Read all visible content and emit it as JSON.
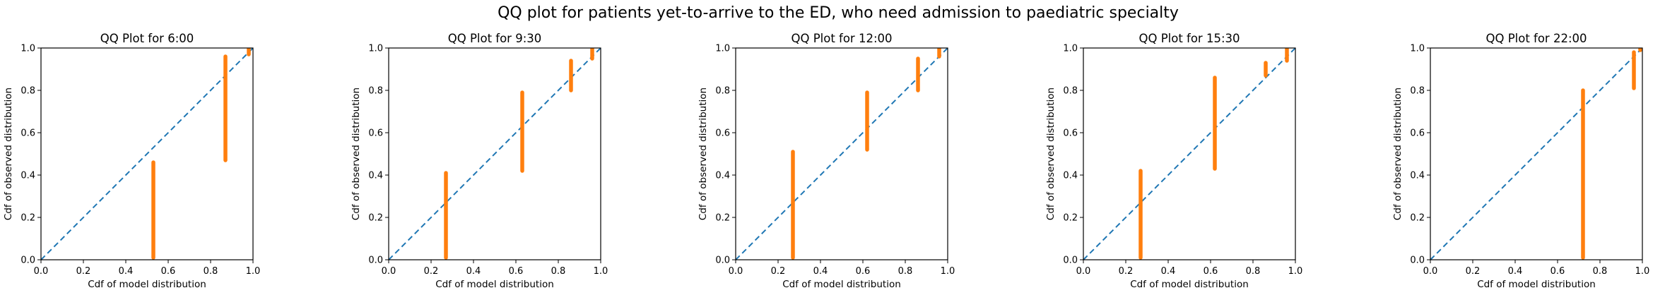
{
  "figure_title": "QQ plot for patients yet-to-arrive to the ED, who need admission to paediatric specialty",
  "colors": {
    "reference_line": "#1f77b4",
    "points": "#ff7f0e",
    "axes": "#000000"
  },
  "chart_data": [
    {
      "type": "scatter",
      "title": "QQ Plot for 6:00",
      "xlabel": "Cdf of model distribution",
      "ylabel": "Cdf of observed distribution",
      "xlim": [
        0,
        1
      ],
      "ylim": [
        0,
        1
      ],
      "xticks": [
        "0.0",
        "0.2",
        "0.4",
        "0.6",
        "0.8",
        "1.0"
      ],
      "yticks": [
        "0.0",
        "0.2",
        "0.4",
        "0.6",
        "0.8",
        "1.0"
      ],
      "reference_line": {
        "style": "dashed",
        "from": [
          0,
          0
        ],
        "to": [
          1,
          1
        ]
      },
      "point_columns": [
        {
          "x": 0.53,
          "y_min": 0.01,
          "y_max": 0.46
        },
        {
          "x": 0.87,
          "y_min": 0.47,
          "y_max": 0.96
        },
        {
          "x": 0.98,
          "y_min": 0.97,
          "y_max": 1.0
        }
      ],
      "grid": false
    },
    {
      "type": "scatter",
      "title": "QQ Plot for 9:30",
      "xlabel": "Cdf of model distribution",
      "ylabel": "Cdf of observed distribution",
      "xlim": [
        0,
        1
      ],
      "ylim": [
        0,
        1
      ],
      "xticks": [
        "0.0",
        "0.2",
        "0.4",
        "0.6",
        "0.8",
        "1.0"
      ],
      "yticks": [
        "0.0",
        "0.2",
        "0.4",
        "0.6",
        "0.8",
        "1.0"
      ],
      "reference_line": {
        "style": "dashed",
        "from": [
          0,
          0
        ],
        "to": [
          1,
          1
        ]
      },
      "point_columns": [
        {
          "x": 0.27,
          "y_min": 0.01,
          "y_max": 0.41
        },
        {
          "x": 0.63,
          "y_min": 0.42,
          "y_max": 0.79
        },
        {
          "x": 0.86,
          "y_min": 0.8,
          "y_max": 0.94
        },
        {
          "x": 0.96,
          "y_min": 0.95,
          "y_max": 1.0
        }
      ],
      "grid": false
    },
    {
      "type": "scatter",
      "title": "QQ Plot for 12:00",
      "xlabel": "Cdf of model distribution",
      "ylabel": "Cdf of observed distribution",
      "xlim": [
        0,
        1
      ],
      "ylim": [
        0,
        1
      ],
      "xticks": [
        "0.0",
        "0.2",
        "0.4",
        "0.6",
        "0.8",
        "1.0"
      ],
      "yticks": [
        "0.0",
        "0.2",
        "0.4",
        "0.6",
        "0.8",
        "1.0"
      ],
      "reference_line": {
        "style": "dashed",
        "from": [
          0,
          0
        ],
        "to": [
          1,
          1
        ]
      },
      "point_columns": [
        {
          "x": 0.27,
          "y_min": 0.01,
          "y_max": 0.51
        },
        {
          "x": 0.62,
          "y_min": 0.52,
          "y_max": 0.79
        },
        {
          "x": 0.86,
          "y_min": 0.8,
          "y_max": 0.95
        },
        {
          "x": 0.96,
          "y_min": 0.96,
          "y_max": 1.0
        }
      ],
      "grid": false
    },
    {
      "type": "scatter",
      "title": "QQ Plot for 15:30",
      "xlabel": "Cdf of model distribution",
      "ylabel": "Cdf of observed distribution",
      "xlim": [
        0,
        1
      ],
      "ylim": [
        0,
        1
      ],
      "xticks": [
        "0.0",
        "0.2",
        "0.4",
        "0.6",
        "0.8",
        "1.0"
      ],
      "yticks": [
        "0.0",
        "0.2",
        "0.4",
        "0.6",
        "0.8",
        "1.0"
      ],
      "reference_line": {
        "style": "dashed",
        "from": [
          0,
          0
        ],
        "to": [
          1,
          1
        ]
      },
      "point_columns": [
        {
          "x": 0.27,
          "y_min": 0.01,
          "y_max": 0.42
        },
        {
          "x": 0.62,
          "y_min": 0.43,
          "y_max": 0.86
        },
        {
          "x": 0.86,
          "y_min": 0.87,
          "y_max": 0.93
        },
        {
          "x": 0.96,
          "y_min": 0.94,
          "y_max": 1.0
        }
      ],
      "grid": false
    },
    {
      "type": "scatter",
      "title": "QQ Plot for 22:00",
      "xlabel": "Cdf of model distribution",
      "ylabel": "Cdf of observed distribution",
      "xlim": [
        0,
        1
      ],
      "ylim": [
        0,
        1
      ],
      "xticks": [
        "0.0",
        "0.2",
        "0.4",
        "0.6",
        "0.8",
        "1.0"
      ],
      "yticks": [
        "0.0",
        "0.2",
        "0.4",
        "0.6",
        "0.8",
        "1.0"
      ],
      "reference_line": {
        "style": "dashed",
        "from": [
          0,
          0
        ],
        "to": [
          1,
          1
        ]
      },
      "point_columns": [
        {
          "x": 0.72,
          "y_min": 0.01,
          "y_max": 0.8
        },
        {
          "x": 0.96,
          "y_min": 0.81,
          "y_max": 0.98
        },
        {
          "x": 0.99,
          "y_min": 0.99,
          "y_max": 1.0
        }
      ],
      "grid": false
    }
  ]
}
